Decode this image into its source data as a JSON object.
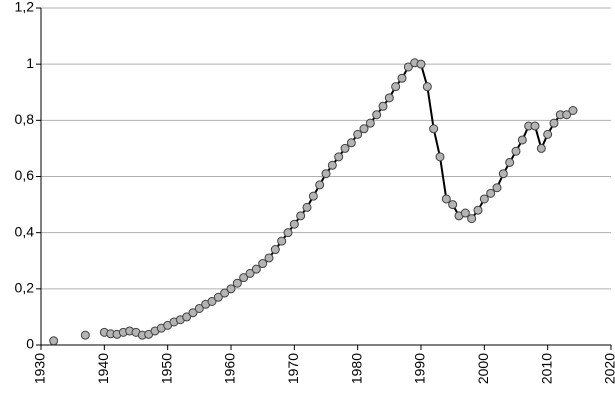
{
  "chart_data": {
    "type": "line",
    "x": [
      1932,
      1933,
      1934,
      1935,
      1936,
      1937,
      1938,
      1939,
      1940,
      1941,
      1942,
      1943,
      1944,
      1945,
      1946,
      1947,
      1948,
      1949,
      1950,
      1951,
      1952,
      1953,
      1954,
      1955,
      1956,
      1957,
      1958,
      1959,
      1960,
      1961,
      1962,
      1963,
      1964,
      1965,
      1966,
      1967,
      1968,
      1969,
      1970,
      1971,
      1972,
      1973,
      1974,
      1975,
      1976,
      1977,
      1978,
      1979,
      1980,
      1981,
      1982,
      1983,
      1984,
      1985,
      1986,
      1987,
      1988,
      1989,
      1990,
      1991,
      1992,
      1993,
      1994,
      1995,
      1996,
      1997,
      1998,
      1999,
      2000,
      2001,
      2002,
      2003,
      2004,
      2005,
      2006,
      2007,
      2008,
      2009,
      2010,
      2011,
      2012,
      2013,
      2014
    ],
    "values": [
      0.015,
      null,
      null,
      null,
      null,
      0.035,
      null,
      null,
      0.045,
      0.04,
      0.038,
      0.045,
      0.05,
      0.045,
      0.035,
      0.038,
      0.05,
      0.06,
      0.07,
      0.082,
      0.09,
      0.1,
      0.115,
      0.13,
      0.145,
      0.155,
      0.17,
      0.185,
      0.2,
      0.22,
      0.24,
      0.255,
      0.27,
      0.29,
      0.31,
      0.34,
      0.37,
      0.4,
      0.43,
      0.46,
      0.49,
      0.53,
      0.57,
      0.61,
      0.64,
      0.67,
      0.7,
      0.72,
      0.75,
      0.77,
      0.79,
      0.82,
      0.85,
      0.88,
      0.92,
      0.95,
      0.99,
      1.005,
      1.0,
      0.92,
      0.77,
      0.67,
      0.52,
      0.5,
      0.46,
      0.47,
      0.45,
      0.48,
      0.52,
      0.54,
      0.56,
      0.61,
      0.65,
      0.69,
      0.73,
      0.78,
      0.78,
      0.7,
      0.75,
      0.79,
      0.82,
      0.82,
      0.835
    ],
    "color": "#000000",
    "marker_color": "#b4b4b4",
    "xlim": [
      1930,
      2020
    ],
    "xticks": [
      1930,
      1940,
      1950,
      1960,
      1970,
      1980,
      1990,
      2000,
      2010,
      2020
    ],
    "ylim": [
      0,
      1.2
    ],
    "yticks": [
      0,
      {
        "value": 0.2,
        "label": "0,2"
      },
      {
        "value": 0.4,
        "label": "0,4"
      },
      {
        "value": 0.6,
        "label": "0,6"
      },
      {
        "value": 0.8,
        "label": "0,8"
      },
      1,
      {
        "value": 1.2,
        "label": "1,2"
      }
    ],
    "grid": true
  }
}
